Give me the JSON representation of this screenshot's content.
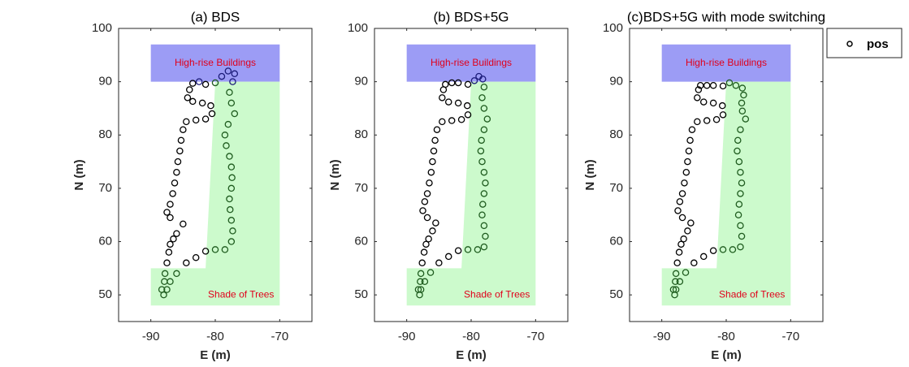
{
  "chart_data": [
    {
      "type": "scatter",
      "title": "(a) BDS",
      "xlabel": "E (m)",
      "ylabel": "N (m)",
      "xlim": [
        -95,
        -65
      ],
      "ylim": [
        45,
        100
      ],
      "xticks": [
        -90,
        -80,
        -70
      ],
      "yticks": [
        50,
        60,
        70,
        80,
        90,
        100
      ],
      "regions": [
        {
          "label": "High-rise Buildings",
          "color": "#9c9cf5",
          "point_color": "#1c1c7a",
          "label_color": "#e0001b",
          "x": [
            -90,
            -70,
            -70,
            -90
          ],
          "y": [
            90,
            90,
            97,
            97
          ],
          "label_at": [
            -80,
            93.5
          ]
        },
        {
          "label": "Shade of Trees",
          "color": "#ccfacc",
          "point_color": "#1f5c1f",
          "label_color": "#e0001b",
          "x": [
            -90,
            -81.5,
            -80,
            -70,
            -70,
            -90
          ],
          "y": [
            55,
            55,
            90,
            90,
            48,
            48
          ],
          "label_at": [
            -76,
            50
          ]
        }
      ],
      "series": [
        {
          "name": "pos",
          "color": "#000000",
          "x": [
            -88,
            -88.3,
            -87.9,
            -87.8,
            -87.5,
            -87.2,
            -87,
            -86.5,
            -86,
            -85,
            -87,
            -87.5,
            -87,
            -86.6,
            -86.3,
            -86,
            -85.8,
            -85.5,
            -85.3,
            -85,
            -84.5,
            -83,
            -81.5,
            -80.5,
            -80.7,
            -82,
            -83.5,
            -84.3,
            -84,
            -83.5,
            -82.5,
            -81.5,
            -80,
            -79,
            -78,
            -77,
            -77.3,
            -77.8,
            -77.5,
            -77,
            -78,
            -78.5,
            -78.3,
            -77.8,
            -77.5,
            -77.4,
            -77.5,
            -77.8,
            -77.7,
            -77.5,
            -77.3,
            -77.5,
            -78.5,
            -80,
            -81.5,
            -83,
            -84.5,
            -86,
            -87,
            -87.5
          ],
          "values": [
            50,
            51,
            52.5,
            54,
            56,
            58,
            59.5,
            60.5,
            61.5,
            63.3,
            64.5,
            65.5,
            67,
            69,
            71,
            73,
            75,
            77,
            79,
            81,
            82.5,
            82.8,
            83,
            84,
            85.5,
            86,
            86.3,
            87,
            88.5,
            89.7,
            90,
            89.5,
            89.8,
            91,
            92,
            91.5,
            90,
            88,
            86,
            84,
            82,
            80,
            78,
            76,
            74,
            72,
            70,
            68,
            66,
            64,
            62,
            60,
            58.5,
            58.5,
            58.2,
            57,
            56,
            54,
            52.5,
            51
          ]
        }
      ]
    },
    {
      "type": "scatter",
      "title": "(b) BDS+5G",
      "xlabel": "E (m)",
      "ylabel": "N (m)",
      "xlim": [
        -95,
        -65
      ],
      "ylim": [
        45,
        100
      ],
      "xticks": [
        -90,
        -80,
        -70
      ],
      "yticks": [
        50,
        60,
        70,
        80,
        90,
        100
      ],
      "regions": [
        {
          "label": "High-rise Buildings",
          "color": "#9c9cf5",
          "point_color": "#1c1c7a",
          "label_color": "#e0001b",
          "x": [
            -90,
            -70,
            -70,
            -90
          ],
          "y": [
            90,
            90,
            97,
            97
          ],
          "label_at": [
            -80,
            93.5
          ]
        },
        {
          "label": "Shade of Trees",
          "color": "#ccfacc",
          "point_color": "#1f5c1f",
          "label_color": "#e0001b",
          "x": [
            -90,
            -81.5,
            -80,
            -70,
            -70,
            -90
          ],
          "y": [
            55,
            55,
            90,
            90,
            48,
            48
          ],
          "label_at": [
            -76,
            50
          ]
        }
      ],
      "series": [
        {
          "name": "pos",
          "color": "#000000",
          "x": [
            -88,
            -88.2,
            -87.9,
            -87.8,
            -87.6,
            -87.3,
            -87,
            -86.6,
            -86,
            -85.5,
            -86.8,
            -87.5,
            -87.2,
            -86.8,
            -86.5,
            -86.2,
            -86,
            -85.8,
            -85.6,
            -85.3,
            -84.5,
            -83,
            -81.5,
            -80.5,
            -80.6,
            -82,
            -83.5,
            -84.5,
            -84.3,
            -84,
            -83,
            -82,
            -80.5,
            -79.5,
            -78.8,
            -78.2,
            -78,
            -78.3,
            -78,
            -77.5,
            -78,
            -78.4,
            -78.5,
            -78.3,
            -78,
            -77.8,
            -78,
            -78.2,
            -78.3,
            -78,
            -77.8,
            -78,
            -79,
            -80.5,
            -82,
            -83.5,
            -85,
            -86.3,
            -87.2,
            -87.8
          ],
          "values": [
            50,
            51,
            52.5,
            54,
            56,
            58,
            59.5,
            60.5,
            62,
            63.5,
            64.5,
            65.8,
            67.5,
            69,
            71,
            73,
            75,
            77,
            79,
            81,
            82.5,
            82.7,
            82.9,
            83.8,
            85.5,
            86,
            86.2,
            87,
            88.5,
            89.5,
            89.8,
            89.8,
            89.5,
            90.2,
            91,
            90.5,
            89,
            87,
            85,
            83,
            81,
            79,
            77,
            75,
            73,
            71,
            69,
            67,
            65,
            63,
            61,
            59,
            58.5,
            58.5,
            58.3,
            57.2,
            56,
            54.2,
            52.5,
            51
          ]
        }
      ]
    },
    {
      "type": "scatter",
      "title": "(c)BDS+5G with mode switching",
      "xlabel": "E (m)",
      "ylabel": "N (m)",
      "xlim": [
        -95,
        -65
      ],
      "ylim": [
        45,
        100
      ],
      "xticks": [
        -90,
        -80,
        -70
      ],
      "yticks": [
        50,
        60,
        70,
        80,
        90,
        100
      ],
      "legend": "northeastoutside",
      "regions": [
        {
          "label": "High-rise Buildings",
          "color": "#9c9cf5",
          "point_color": "#1c1c7a",
          "label_color": "#e0001b",
          "x": [
            -90,
            -70,
            -70,
            -90
          ],
          "y": [
            90,
            90,
            97,
            97
          ],
          "label_at": [
            -80,
            93.5
          ]
        },
        {
          "label": "Shade of Trees",
          "color": "#ccfacc",
          "point_color": "#1f5c1f",
          "label_color": "#e0001b",
          "x": [
            -90,
            -81.5,
            -80,
            -70,
            -70,
            -90
          ],
          "y": [
            55,
            55,
            90,
            90,
            48,
            48
          ],
          "label_at": [
            -76,
            50
          ]
        }
      ],
      "series": [
        {
          "name": "pos",
          "color": "#000000",
          "x": [
            -88,
            -88.2,
            -87.9,
            -87.8,
            -87.6,
            -87.3,
            -87,
            -86.6,
            -86,
            -85.5,
            -86.8,
            -87.5,
            -87.2,
            -86.8,
            -86.5,
            -86.2,
            -86,
            -85.8,
            -85.6,
            -85.3,
            -84.5,
            -83,
            -81.5,
            -80.5,
            -80.6,
            -82,
            -83.5,
            -84.5,
            -84.3,
            -84,
            -83,
            -82,
            -80.5,
            -79.5,
            -78.5,
            -77.5,
            -77.3,
            -77.6,
            -77.5,
            -77,
            -77.8,
            -78.2,
            -78.3,
            -78,
            -77.8,
            -77.6,
            -77.8,
            -78,
            -78.1,
            -77.8,
            -77.6,
            -77.8,
            -79,
            -80.5,
            -82,
            -83.5,
            -85,
            -86.3,
            -87.2,
            -87.8
          ],
          "values": [
            50,
            51,
            52.5,
            54,
            56,
            58,
            59.5,
            60.5,
            62,
            63.5,
            64.5,
            65.8,
            67.5,
            69,
            71,
            73,
            75,
            77,
            79,
            81,
            82.5,
            82.7,
            82.9,
            83.8,
            85.5,
            86,
            86.2,
            87,
            88.5,
            89.3,
            89.3,
            89.3,
            89.2,
            89.8,
            89.3,
            88.8,
            87.5,
            86,
            84.5,
            83,
            81,
            79,
            77,
            75,
            73,
            71,
            69,
            67,
            65,
            63,
            61,
            59,
            58.5,
            58.5,
            58.3,
            57.2,
            56,
            54.2,
            52.5,
            51
          ]
        }
      ]
    }
  ]
}
